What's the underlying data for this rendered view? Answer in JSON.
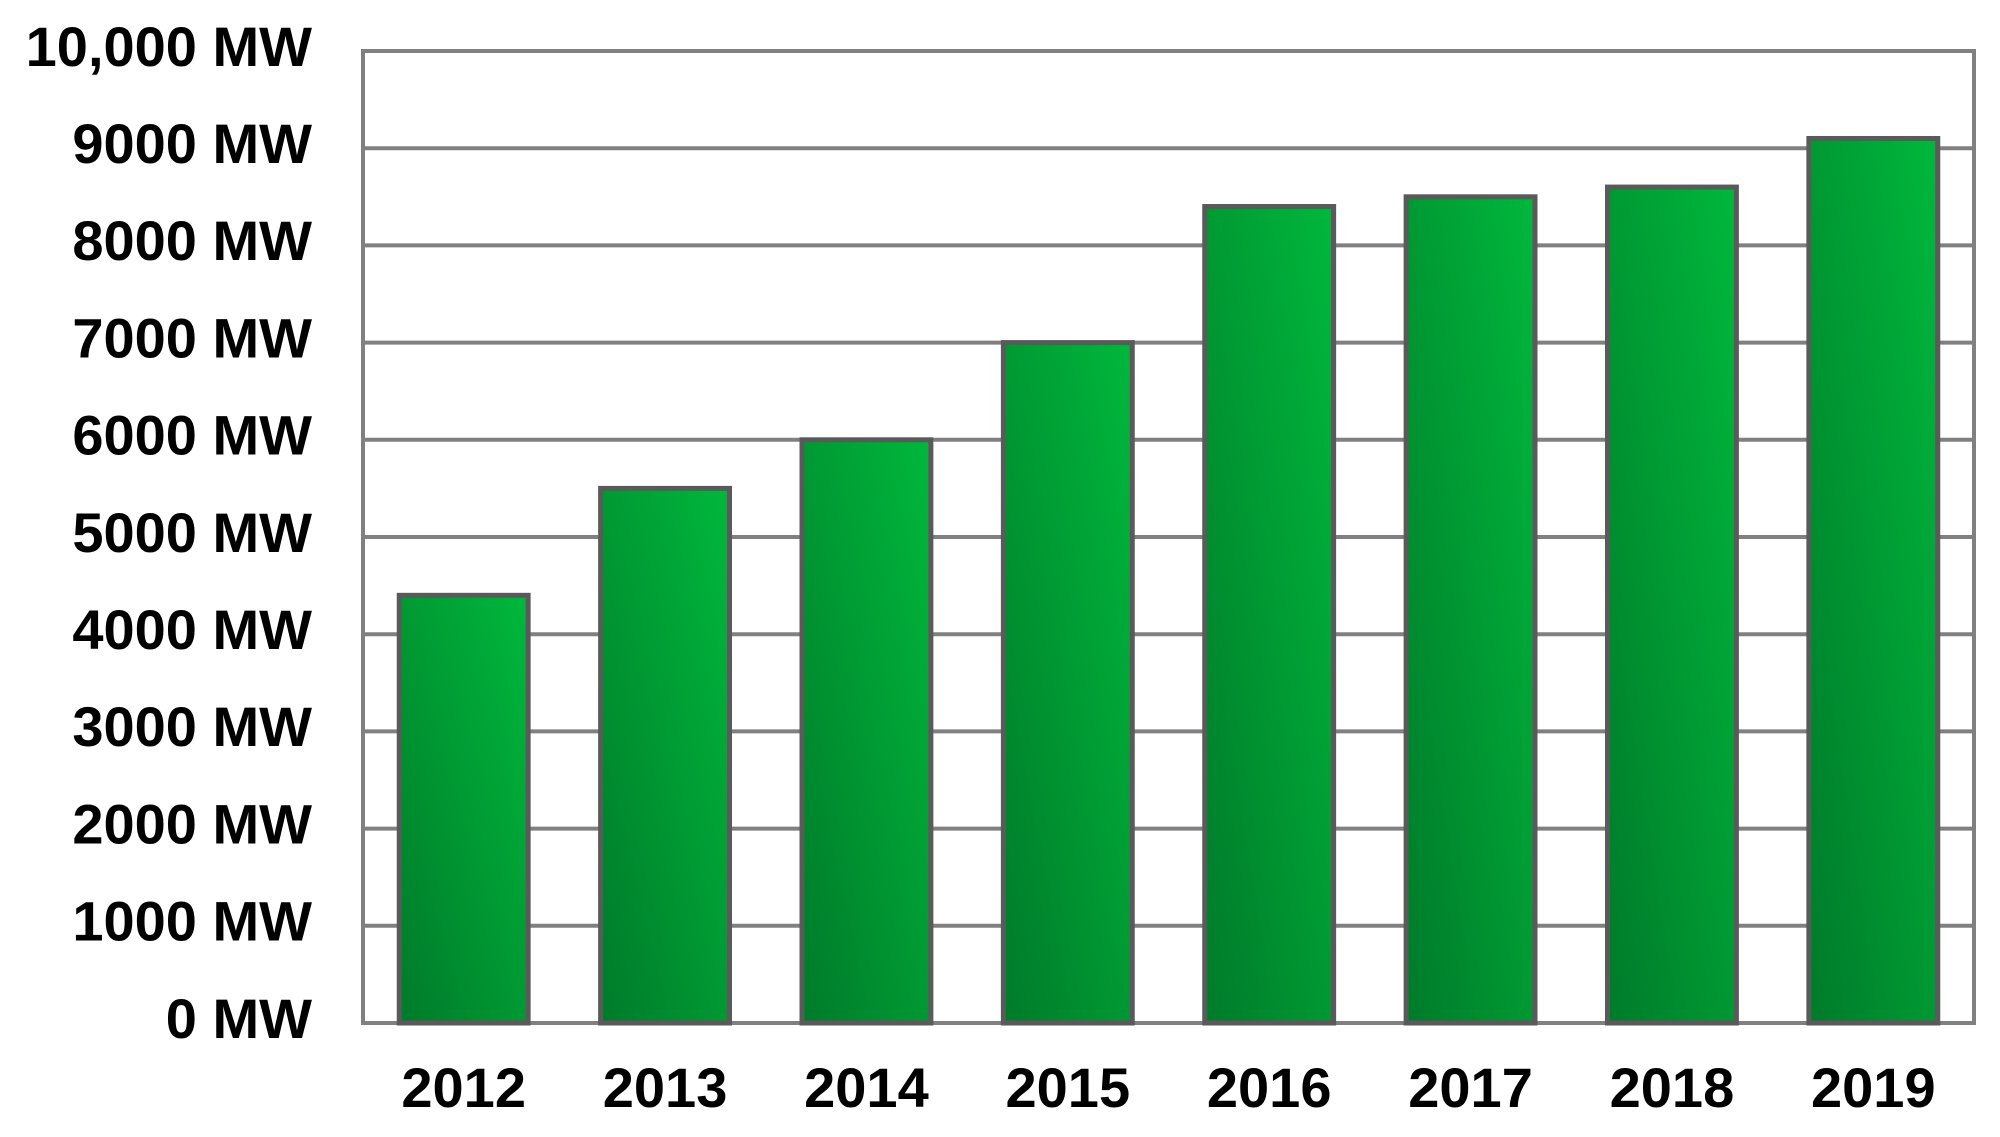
{
  "chart_data": {
    "type": "bar",
    "categories": [
      "2012",
      "2013",
      "2014",
      "2015",
      "2016",
      "2017",
      "2018",
      "2019"
    ],
    "values": [
      4400,
      5500,
      6000,
      7000,
      8400,
      8500,
      8600,
      9100
    ],
    "color": "#00b83c",
    "ylim": [
      0,
      10000
    ],
    "yticks": [
      {
        "value": 0,
        "label": "0 MW"
      },
      {
        "value": 1000,
        "label": "1000 MW"
      },
      {
        "value": 2000,
        "label": "2000 MW"
      },
      {
        "value": 3000,
        "label": "3000 MW"
      },
      {
        "value": 4000,
        "label": "4000 MW"
      },
      {
        "value": 5000,
        "label": "5000 MW"
      },
      {
        "value": 6000,
        "label": "6000 MW"
      },
      {
        "value": 7000,
        "label": "7000 MW"
      },
      {
        "value": 8000,
        "label": "8000 MW"
      },
      {
        "value": 9000,
        "label": "9000 MW"
      },
      {
        "value": 10000,
        "label": "10,000 MW"
      }
    ],
    "grid": true
  }
}
